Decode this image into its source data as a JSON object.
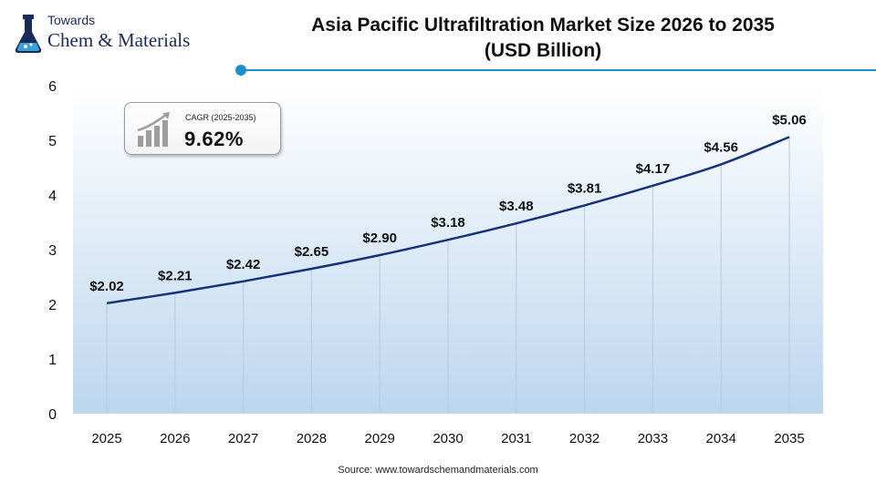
{
  "header": {
    "logo_line1": "Towards",
    "logo_line2": "Chem & Materials",
    "title_line1": "Asia Pacific Ultrafiltration Market Size 2026 to 2035",
    "title_line2": "(USD Billion)"
  },
  "cagr": {
    "label": "CAGR (2025-2035)",
    "value": "9.62%",
    "icon": "bar-growth-arrow-icon"
  },
  "source": "Source: www.towardschemandmaterials.com",
  "colors": {
    "line": "#15327a",
    "accent": "#1d8fc7",
    "area_top": "#ffffff",
    "area_bottom": "#bcd6ef"
  },
  "chart_data": {
    "type": "line",
    "title": "Asia Pacific Ultrafiltration Market Size 2026 to 2035 (USD Billion)",
    "categories": [
      "2025",
      "2026",
      "2027",
      "2028",
      "2029",
      "2030",
      "2031",
      "2032",
      "2033",
      "2034",
      "2035"
    ],
    "values": [
      2.02,
      2.21,
      2.42,
      2.65,
      2.9,
      3.18,
      3.48,
      3.81,
      4.17,
      4.56,
      5.06
    ],
    "data_labels": [
      "$2.02",
      "$2.21",
      "$2.42",
      "$2.65",
      "$2.90",
      "$3.18",
      "$3.48",
      "$3.81",
      "$4.17",
      "$4.56",
      "$5.06"
    ],
    "yticks": [
      "0",
      "1",
      "2",
      "3",
      "4",
      "5",
      "6"
    ],
    "ylim": [
      0,
      6
    ],
    "xlabel": "",
    "ylabel": "",
    "grid": "vertical drop lines"
  }
}
